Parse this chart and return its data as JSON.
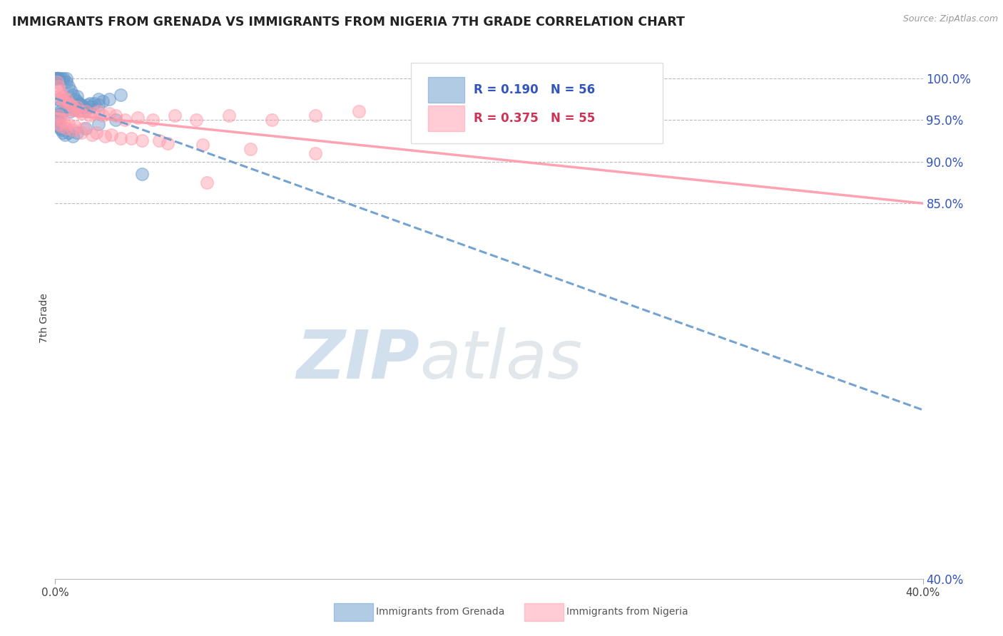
{
  "title": "IMMIGRANTS FROM GRENADA VS IMMIGRANTS FROM NIGERIA 7TH GRADE CORRELATION CHART",
  "source": "Source: ZipAtlas.com",
  "ylabel": "7th Grade",
  "yticks": [
    40.0,
    85.0,
    90.0,
    95.0,
    100.0
  ],
  "ytick_labels": [
    "40.0%",
    "85.0%",
    "90.0%",
    "95.0%",
    "100.0%"
  ],
  "xtick_labels": [
    "0.0%",
    "40.0%"
  ],
  "xlim": [
    0.0,
    40.0
  ],
  "ylim": [
    40.0,
    102.5
  ],
  "blue_R": 0.19,
  "blue_N": 56,
  "pink_R": 0.375,
  "pink_N": 55,
  "blue_color": "#6699CC",
  "pink_color": "#FF99AA",
  "blue_label": "Immigrants from Grenada",
  "pink_label": "Immigrants from Nigeria",
  "watermark_zip": "ZIP",
  "watermark_atlas": "atlas",
  "watermark_color_zip": "#C5D8EC",
  "watermark_color_atlas": "#C5D8EC",
  "blue_scatter_x": [
    0.1,
    0.1,
    0.1,
    0.1,
    0.1,
    0.1,
    0.15,
    0.2,
    0.3,
    0.4,
    0.5,
    0.5,
    0.6,
    0.7,
    0.8,
    0.9,
    1.0,
    1.0,
    1.1,
    1.2,
    1.3,
    1.4,
    1.5,
    1.6,
    1.8,
    2.0,
    2.2,
    2.5,
    3.0,
    0.15,
    0.2,
    0.25,
    0.3,
    0.5,
    0.7,
    0.9,
    1.1,
    1.3,
    1.6,
    2.0,
    0.1,
    0.1,
    0.12,
    0.15,
    0.18,
    0.22,
    0.28,
    0.35,
    0.45,
    0.6,
    0.8,
    1.0,
    1.4,
    2.0,
    2.8,
    4.0
  ],
  "blue_scatter_y": [
    100.0,
    100.0,
    100.0,
    100.0,
    100.0,
    100.0,
    100.0,
    100.0,
    100.0,
    100.0,
    99.5,
    100.0,
    99.0,
    98.5,
    98.0,
    97.5,
    97.2,
    97.8,
    97.0,
    96.8,
    96.5,
    96.3,
    96.8,
    96.5,
    97.0,
    96.8,
    97.2,
    97.5,
    98.0,
    97.5,
    96.5,
    96.0,
    95.8,
    96.5,
    96.0,
    96.3,
    96.8,
    96.5,
    97.0,
    97.5,
    95.5,
    95.0,
    94.8,
    94.5,
    94.2,
    94.0,
    93.8,
    93.5,
    93.2,
    93.5,
    93.0,
    93.5,
    94.0,
    94.5,
    95.0,
    88.5
  ],
  "pink_scatter_x": [
    0.1,
    0.15,
    0.2,
    0.25,
    0.3,
    0.35,
    0.4,
    0.5,
    0.6,
    0.7,
    0.8,
    0.9,
    1.0,
    1.1,
    1.2,
    1.4,
    1.6,
    1.8,
    2.0,
    2.2,
    2.5,
    2.8,
    3.2,
    3.8,
    4.5,
    5.5,
    6.5,
    8.0,
    10.0,
    12.0,
    14.0,
    0.2,
    0.3,
    0.5,
    0.8,
    1.2,
    1.7,
    2.3,
    3.0,
    4.0,
    5.2,
    6.8,
    9.0,
    12.0,
    0.15,
    0.25,
    0.4,
    0.6,
    0.9,
    1.3,
    1.9,
    2.6,
    3.5,
    4.8,
    7.0
  ],
  "pink_scatter_y": [
    99.5,
    99.0,
    98.5,
    98.0,
    97.5,
    97.8,
    97.2,
    97.5,
    97.0,
    96.8,
    96.5,
    96.2,
    96.5,
    96.0,
    95.8,
    96.0,
    95.5,
    95.8,
    96.0,
    95.5,
    95.8,
    95.5,
    95.0,
    95.3,
    95.0,
    95.5,
    95.0,
    95.5,
    95.0,
    95.5,
    96.0,
    94.5,
    94.2,
    94.0,
    93.8,
    93.5,
    93.2,
    93.0,
    92.8,
    92.5,
    92.2,
    92.0,
    91.5,
    91.0,
    95.5,
    95.0,
    94.8,
    94.5,
    94.2,
    94.0,
    93.5,
    93.2,
    92.8,
    92.5,
    87.5
  ]
}
